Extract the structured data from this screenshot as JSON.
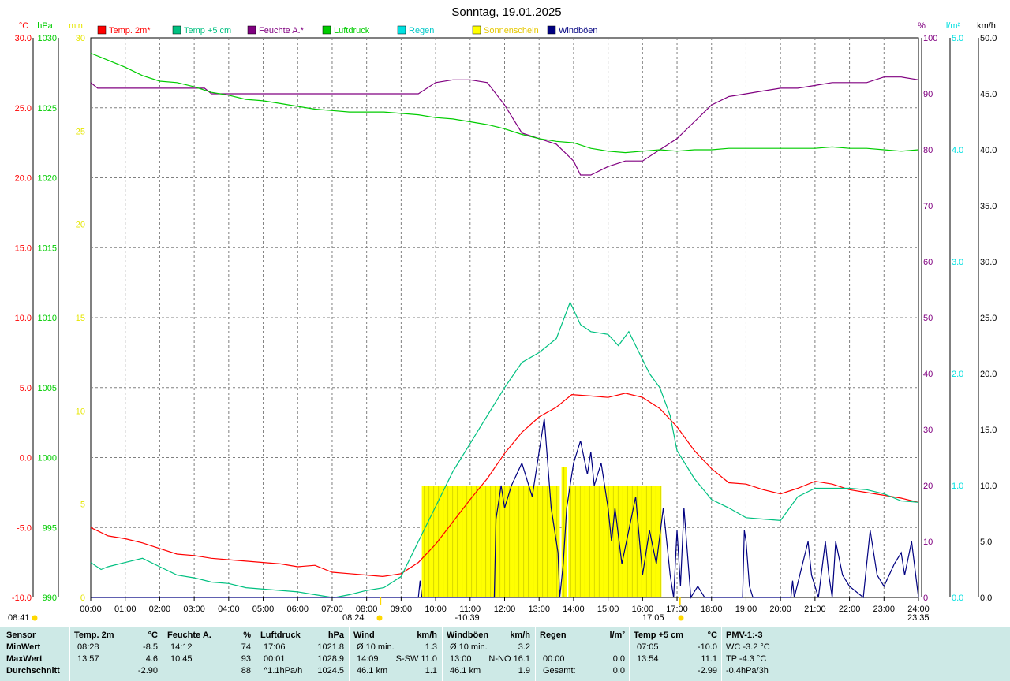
{
  "chart_data": {
    "type": "line",
    "title": "Sonntag, 19.01.2025",
    "x_ticks": [
      "00:00",
      "01:00",
      "02:00",
      "03:00",
      "04:00",
      "05:00",
      "06:00",
      "07:00",
      "08:00",
      "09:00",
      "10:00",
      "11:00",
      "12:00",
      "13:00",
      "14:00",
      "15:00",
      "16:00",
      "17:00",
      "18:00",
      "19:00",
      "20:00",
      "21:00",
      "22:00",
      "23:00",
      "24:00"
    ],
    "xlim_hours": [
      0,
      24
    ],
    "grid": true,
    "axes": {
      "temp": {
        "unit": "°C",
        "ylim": [
          -10,
          30
        ],
        "ticks": [
          "-10.0",
          "-5.0",
          "0.0",
          "5.0",
          "10.0",
          "15.0",
          "20.0",
          "25.0",
          "30.0"
        ],
        "color": "#ff0000"
      },
      "pressure": {
        "unit": "hPa",
        "ylim": [
          990,
          1030
        ],
        "ticks": [
          "990",
          "995",
          "1000",
          "1005",
          "1010",
          "1015",
          "1020",
          "1025",
          "1030"
        ],
        "color": "#00cc00"
      },
      "sun_minutes": {
        "unit": "min",
        "ylim": [
          0,
          30
        ],
        "ticks": [
          "0",
          "5",
          "10",
          "15",
          "20",
          "25",
          "30"
        ],
        "color": "#e6e600"
      },
      "humidity": {
        "unit": "%",
        "ylim": [
          0,
          100
        ],
        "ticks": [
          "0",
          "10",
          "20",
          "30",
          "40",
          "50",
          "60",
          "70",
          "80",
          "90",
          "100"
        ],
        "color": "#800080"
      },
      "rain": {
        "unit": "l/m²",
        "ylim": [
          0,
          5
        ],
        "ticks": [
          "0.0",
          "1.0",
          "2.0",
          "3.0",
          "4.0",
          "5.0"
        ],
        "color": "#00e0e0"
      },
      "wind": {
        "unit": "km/h",
        "ylim": [
          0,
          50
        ],
        "ticks": [
          "0.0",
          "5.0",
          "10.0",
          "15.0",
          "20.0",
          "25.0",
          "30.0",
          "35.0",
          "40.0",
          "45.0",
          "50.0"
        ],
        "color": "#000000"
      }
    },
    "legend": [
      {
        "name": "Temp. 2m*",
        "color": "#ff0000"
      },
      {
        "name": "Temp +5 cm",
        "color": "#00c080"
      },
      {
        "name": "Feuchte A.*",
        "color": "#800080"
      },
      {
        "name": "Luftdruck",
        "color": "#00cc00"
      },
      {
        "name": "Regen",
        "color": "#00e0e0"
      },
      {
        "name": "Sonnenschein",
        "color": "#ffff00"
      },
      {
        "name": "Windböen",
        "color": "#000080"
      }
    ],
    "legend_placement": "top",
    "series": [
      {
        "name": "Temp. 2m*",
        "axis": "temp",
        "color": "#ff0000",
        "x": [
          0,
          0.5,
          1,
          1.5,
          2,
          2.5,
          3,
          3.5,
          4,
          4.5,
          5,
          5.5,
          6,
          6.5,
          7,
          7.5,
          8,
          8.47,
          9,
          9.5,
          10,
          10.5,
          11,
          11.5,
          12,
          12.5,
          13,
          13.5,
          13.95,
          14.5,
          15,
          15.5,
          16,
          16.5,
          17,
          17.5,
          18,
          18.5,
          19,
          19.5,
          20,
          20.5,
          21,
          21.5,
          22,
          22.5,
          23,
          23.5,
          24
        ],
        "y": [
          -5.0,
          -5.6,
          -5.8,
          -6.1,
          -6.5,
          -6.9,
          -7.0,
          -7.2,
          -7.3,
          -7.4,
          -7.5,
          -7.6,
          -7.8,
          -7.7,
          -8.2,
          -8.3,
          -8.4,
          -8.5,
          -8.3,
          -7.5,
          -6.2,
          -4.6,
          -3.0,
          -1.5,
          0.3,
          1.8,
          2.9,
          3.6,
          4.5,
          4.4,
          4.3,
          4.6,
          4.3,
          3.5,
          2.2,
          0.5,
          -0.8,
          -1.8,
          -1.9,
          -2.3,
          -2.6,
          -2.2,
          -1.7,
          -1.9,
          -2.3,
          -2.5,
          -2.7,
          -2.9,
          -3.2
        ]
      },
      {
        "name": "Temp +5 cm",
        "axis": "temp",
        "color": "#00c080",
        "x": [
          0,
          0.3,
          0.5,
          1,
          1.5,
          2,
          2.5,
          3,
          3.5,
          4,
          4.5,
          5,
          5.5,
          6,
          6.5,
          7,
          7.08,
          7.5,
          8,
          8.5,
          9,
          9.5,
          10,
          10.5,
          11,
          11.5,
          12,
          12.5,
          13,
          13.5,
          13.9,
          14.2,
          14.5,
          15,
          15.3,
          15.6,
          15.9,
          16.2,
          16.5,
          16.8,
          17,
          17.5,
          18,
          18.5,
          19,
          19.5,
          20,
          20.5,
          21,
          21.5,
          22,
          22.5,
          23,
          23.5,
          24
        ],
        "y": [
          -7.5,
          -8.0,
          -7.8,
          -7.5,
          -7.2,
          -7.8,
          -8.4,
          -8.6,
          -8.9,
          -9.0,
          -9.3,
          -9.4,
          -9.5,
          -9.6,
          -9.8,
          -10.0,
          -10.0,
          -9.8,
          -9.5,
          -9.3,
          -8.5,
          -6.0,
          -3.5,
          -1.0,
          1.0,
          3.0,
          5.0,
          6.8,
          7.5,
          8.5,
          11.1,
          9.5,
          9.0,
          8.8,
          8.0,
          9.0,
          7.5,
          6.0,
          5.0,
          3.0,
          0.5,
          -1.5,
          -3.0,
          -3.6,
          -4.3,
          -4.4,
          -4.5,
          -2.8,
          -2.2,
          -2.2,
          -2.2,
          -2.3,
          -2.6,
          -3.1,
          -3.2
        ]
      },
      {
        "name": "Feuchte A.*",
        "axis": "humidity",
        "color": "#800080",
        "x": [
          0,
          0.2,
          0.5,
          1,
          1.5,
          2,
          2.5,
          3,
          3.3,
          3.5,
          4,
          4.5,
          5,
          5.5,
          6,
          6.5,
          7,
          7.5,
          8,
          8.5,
          9,
          9.5,
          10,
          10.5,
          11,
          11.5,
          12,
          12.5,
          13,
          13.5,
          14,
          14.2,
          14.5,
          15,
          15.5,
          16,
          16.5,
          17,
          17.5,
          18,
          18.5,
          19,
          19.5,
          20,
          20.5,
          21,
          21.5,
          22,
          22.5,
          23,
          23.5,
          24
        ],
        "y": [
          92,
          91,
          91,
          91,
          91,
          91,
          91,
          91,
          91,
          90,
          90,
          90,
          90,
          90,
          90,
          90,
          90,
          90,
          90,
          90,
          90,
          90,
          92,
          92.5,
          92.5,
          92,
          88,
          83,
          82,
          81,
          78,
          75.5,
          75.5,
          77,
          78,
          78,
          80,
          82,
          85,
          88,
          89.5,
          90,
          90.5,
          91,
          91,
          91.5,
          92,
          92,
          92,
          93,
          93,
          92.5
        ]
      },
      {
        "name": "Luftdruck",
        "axis": "pressure",
        "color": "#00cc00",
        "x": [
          0,
          0.5,
          1,
          1.5,
          2,
          2.5,
          3,
          3.5,
          4,
          4.5,
          5,
          5.5,
          6,
          6.5,
          7,
          7.5,
          8,
          8.5,
          9,
          9.5,
          10,
          10.5,
          11,
          11.5,
          12,
          12.5,
          13,
          13.5,
          14,
          14.5,
          15,
          15.5,
          16,
          16.5,
          17,
          17.5,
          18,
          18.5,
          19,
          19.5,
          20,
          20.5,
          21,
          21.5,
          22,
          22.5,
          23,
          23.5,
          24
        ],
        "y": [
          1028.9,
          1028.4,
          1027.9,
          1027.3,
          1026.9,
          1026.8,
          1026.5,
          1026.1,
          1025.9,
          1025.6,
          1025.5,
          1025.3,
          1025.1,
          1024.9,
          1024.8,
          1024.7,
          1024.7,
          1024.7,
          1024.6,
          1024.5,
          1024.3,
          1024.2,
          1024.0,
          1023.8,
          1023.5,
          1023.1,
          1022.8,
          1022.6,
          1022.5,
          1022.1,
          1021.9,
          1021.8,
          1021.9,
          1022.0,
          1021.9,
          1022.0,
          1022.0,
          1022.1,
          1022.1,
          1022.1,
          1022.1,
          1022.1,
          1022.1,
          1022.2,
          1022.1,
          1022.1,
          1022.0,
          1021.9,
          1022.0
        ]
      },
      {
        "name": "Windböen",
        "axis": "wind",
        "color": "#000080",
        "x": [
          0,
          9.5,
          9.55,
          9.6,
          9.65,
          10,
          10.5,
          11,
          11.5,
          11.7,
          11.75,
          11.9,
          12,
          12.2,
          12.5,
          12.8,
          13,
          13.15,
          13.35,
          13.55,
          13.6,
          13.7,
          13.8,
          13.9,
          14,
          14.2,
          14.4,
          14.5,
          14.6,
          14.8,
          15,
          15.1,
          15.2,
          15.4,
          15.6,
          15.8,
          16,
          16.2,
          16.4,
          16.6,
          16.8,
          16.9,
          17,
          17.1,
          17.2,
          17.4,
          17.6,
          17.8,
          18,
          18.5,
          18.9,
          18.95,
          19,
          19.1,
          19.2,
          20,
          20.3,
          20.35,
          20.4,
          20.8,
          20.9,
          21.1,
          21.3,
          21.4,
          21.5,
          21.6,
          21.8,
          22,
          22.4,
          22.5,
          22.6,
          22.8,
          23,
          23.3,
          23.5,
          23.6,
          23.8,
          24
        ],
        "y": [
          0,
          0,
          1.5,
          0,
          0,
          0,
          0,
          0,
          0,
          0,
          7,
          10,
          8,
          10,
          12,
          9,
          13,
          16,
          8,
          4,
          0,
          3,
          8,
          10,
          12,
          14,
          11,
          13,
          10,
          12,
          8,
          5,
          8,
          3,
          6,
          9,
          2,
          6,
          3,
          8,
          2,
          0,
          6,
          1,
          8,
          0,
          1,
          0,
          0,
          0,
          0,
          6,
          5,
          1,
          0,
          0,
          0,
          1.5,
          0,
          5,
          2,
          0,
          5,
          2,
          0,
          5,
          2,
          1,
          0,
          3,
          6,
          2,
          1,
          3,
          4,
          2,
          5,
          0
        ]
      }
    ],
    "sunshine_bars": {
      "axis": "sun_minutes",
      "color": "#ffff00",
      "x_start": [
        9.6,
        13.65,
        13.85
      ],
      "x_end": [
        13.6,
        13.8,
        16.55
      ],
      "y": [
        6,
        7,
        6
      ]
    },
    "left_axes_order": [
      "temp",
      "pressure",
      "sun_minutes"
    ],
    "right_axes_order": [
      "humidity",
      "rain",
      "wind"
    ],
    "markers": {
      "sunrise": {
        "time": "08:24",
        "hour": 8.4
      },
      "sunset": {
        "time": "17:05",
        "hour": 17.083
      },
      "moon_label": "-10:39",
      "moon_hour": 10.65,
      "moonrise": "23:35",
      "left_label": "08:41"
    }
  },
  "stats": {
    "columns": [
      {
        "header": "Sensor",
        "unit": "",
        "rows": [
          "MinWert",
          "MaxWert",
          "Durchschnitt"
        ]
      },
      {
        "header": "Temp. 2m",
        "unit": "°C",
        "rows": [
          [
            "08:28",
            "-8.5"
          ],
          [
            "13:57",
            "4.6"
          ],
          [
            "",
            "-2.90"
          ]
        ]
      },
      {
        "header": "Feuchte A.",
        "unit": "%",
        "rows": [
          [
            "14:12",
            "74"
          ],
          [
            "10:45",
            "93"
          ],
          [
            "",
            "88"
          ]
        ]
      },
      {
        "header": "Luftdruck",
        "unit": "hPa",
        "rows": [
          [
            "17:06",
            "1021.8"
          ],
          [
            "00:01",
            "1028.9"
          ],
          [
            "^1.1hPa/h",
            "1024.5"
          ]
        ]
      },
      {
        "header": "Wind",
        "unit": "km/h",
        "rows": [
          [
            "Ø 10 min.",
            "1.3"
          ],
          [
            "14:09",
            "S-SW 11.0"
          ],
          [
            "46.1 km",
            "1.1"
          ]
        ]
      },
      {
        "header": "Windböen",
        "unit": "km/h",
        "rows": [
          [
            "Ø 10 min.",
            "3.2"
          ],
          [
            "13:00",
            "N-NO 16.1"
          ],
          [
            "46.1 km",
            "1.9"
          ]
        ]
      },
      {
        "header": "Regen",
        "unit": "l/m²",
        "rows": [
          [
            "",
            ""
          ],
          [
            "00:00",
            "0.0"
          ],
          [
            "Gesamt:",
            "0.0"
          ]
        ]
      },
      {
        "header": "Temp +5 cm",
        "unit": "°C",
        "rows": [
          [
            "07:05",
            "-10.0"
          ],
          [
            "13:54",
            "11.1"
          ],
          [
            "",
            "-2.99"
          ]
        ]
      },
      {
        "header": "PMV-1:-3",
        "unit": "",
        "rows": [
          "WC -3.2 °C",
          "TP -4.3 °C",
          "-0.4hPa/3h"
        ]
      }
    ]
  }
}
